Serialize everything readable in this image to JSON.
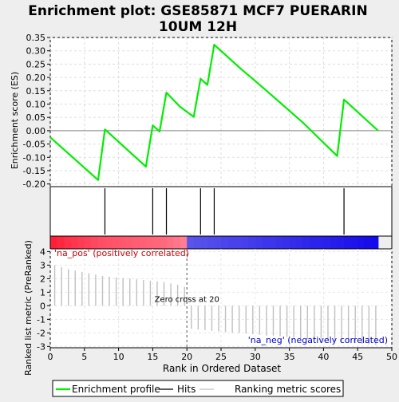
{
  "chart_data": {
    "type": "line",
    "title_line1": "Enrichment plot: GSE85871 MCF7 PUERARIN",
    "title_line2": "10UM 12H",
    "xlabel": "Rank in Ordered Dataset",
    "ylabel_top": "Enrichment score (ES)",
    "ylabel_bottom": "Ranked list metric (PreRanked)",
    "xlim": [
      0,
      50
    ],
    "x_ticks": [
      0,
      5,
      10,
      15,
      20,
      25,
      30,
      35,
      40,
      45,
      50
    ],
    "es_ylim": [
      -0.21,
      0.35
    ],
    "es_y_ticks": [
      -0.2,
      -0.15,
      -0.1,
      -0.05,
      0.0,
      0.05,
      0.1,
      0.15,
      0.2,
      0.25,
      0.3,
      0.35
    ],
    "es_y_tick_labels": [
      "-0.20",
      "-0.15",
      "-0.10",
      "-0.05",
      "0.00",
      "0.05",
      "0.10",
      "0.15",
      "0.20",
      "0.25",
      "0.30",
      "0.35"
    ],
    "metric_ylim": [
      -3.1,
      4.2
    ],
    "metric_y_ticks": [
      -3,
      -2,
      -1,
      0,
      1,
      2,
      3,
      4
    ],
    "es_profile": {
      "x": [
        0,
        7,
        8,
        14,
        15,
        16,
        17,
        19,
        21,
        22,
        23,
        24,
        28,
        30,
        33,
        37,
        42,
        43,
        48
      ],
      "y": [
        -0.025,
        -0.185,
        0.005,
        -0.135,
        0.02,
        -0.003,
        0.143,
        0.09,
        0.052,
        0.195,
        0.172,
        0.323,
        0.23,
        0.187,
        0.12,
        0.03,
        -0.095,
        0.117,
        0.0
      ]
    },
    "hits": [
      8,
      15,
      17,
      22,
      24,
      43
    ],
    "ranked_metric": {
      "x": [
        1,
        2,
        3,
        4,
        5,
        6,
        7,
        8,
        9,
        10,
        11,
        12,
        13,
        14,
        15,
        16,
        17,
        18,
        19,
        20,
        21,
        22,
        23,
        24,
        25,
        26,
        27,
        28,
        29,
        30,
        31,
        32,
        33,
        34,
        35,
        36,
        37,
        38,
        39,
        40,
        41,
        42,
        43,
        44,
        45,
        46,
        47,
        48
      ],
      "y": [
        3.0,
        2.85,
        2.7,
        2.6,
        2.5,
        2.4,
        2.3,
        2.2,
        2.15,
        2.1,
        2.05,
        2.0,
        1.95,
        1.9,
        1.85,
        1.8,
        1.75,
        1.65,
        1.55,
        1.4,
        -1.7,
        -1.75,
        -1.8,
        -1.85,
        -1.9,
        -1.95,
        -2.0,
        -2.0,
        -2.05,
        -2.1,
        -2.15,
        -2.2,
        -2.2,
        -2.25,
        -2.3,
        -2.35,
        -2.4,
        -2.45,
        -2.5,
        -2.5,
        -2.55,
        -2.6,
        -2.65,
        -2.7,
        -2.75,
        -2.8,
        -2.85,
        -2.9
      ]
    },
    "zero_cross_rank": 20,
    "zero_cross_label": "Zero cross at 20",
    "pos_label": "'na_pos' (positively correlated)",
    "neg_label": "'na_neg' (negatively correlated)",
    "legend": [
      "Enrichment profile",
      "Hits",
      "Ranking metric scores"
    ],
    "colors": {
      "profile": "#00ee00",
      "hits": "#000000",
      "metric": "#c0c0c0",
      "pos_label": "#cc0000",
      "neg_label": "#0000cc",
      "zero_line": "#bbbbbb"
    }
  }
}
